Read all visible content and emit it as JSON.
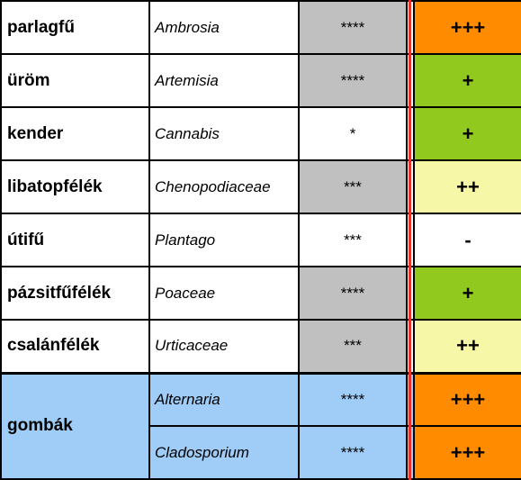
{
  "colors": {
    "level_colors": {
      "high": "#ff8c00",
      "medium": "#f7f7a8",
      "low": "#92c91e",
      "none": "#ffffff"
    },
    "stars_bg": "#c0c0c0",
    "fungi_bg": "#9fcdf7",
    "separator_line": "#e8332a"
  },
  "rows": [
    {
      "name": "parlagfű",
      "latin": "Ambrosia",
      "stars": "****",
      "level": "+++",
      "level_color": "high"
    },
    {
      "name": "üröm",
      "latin": "Artemisia",
      "stars": "****",
      "level": "+",
      "level_color": "low"
    },
    {
      "name": "kender",
      "latin": "Cannabis",
      "stars": "*",
      "level": "+",
      "level_color": "low"
    },
    {
      "name": "libatopfélék",
      "latin": "Chenopodiaceae",
      "stars": "***",
      "level": "++",
      "level_color": "medium"
    },
    {
      "name": "útifű",
      "latin": "Plantago",
      "stars": "***",
      "level": "-",
      "level_color": "none"
    },
    {
      "name": "pázsitfűfélék",
      "latin": "Poaceae",
      "stars": "****",
      "level": "+",
      "level_color": "low"
    },
    {
      "name": "csalánfélék",
      "latin": "Urticaceae",
      "stars": "***",
      "level": "++",
      "level_color": "medium"
    }
  ],
  "fungi": {
    "name": "gombák",
    "items": [
      {
        "latin": "Alternaria",
        "stars": "****",
        "level": "+++",
        "level_color": "high"
      },
      {
        "latin": "Cladosporium",
        "stars": "****",
        "level": "+++",
        "level_color": "high"
      }
    ]
  }
}
